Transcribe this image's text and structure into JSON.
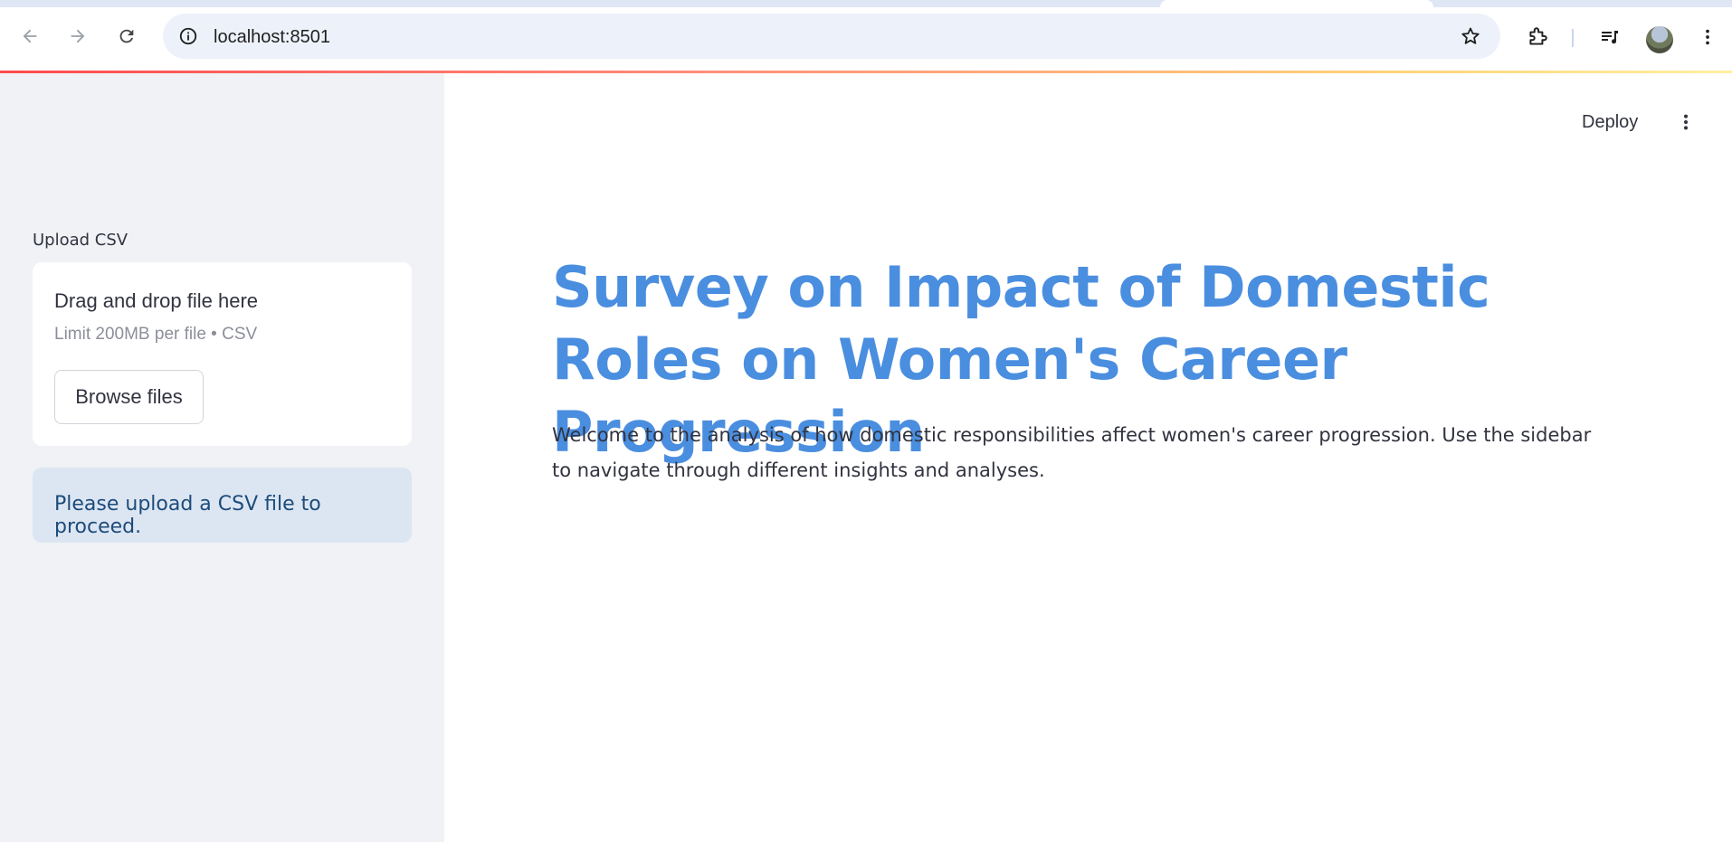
{
  "browser": {
    "url": "localhost:8501"
  },
  "sidebar": {
    "upload_label": "Upload CSV",
    "dropzone": {
      "title": "Drag and drop file here",
      "limit": "Limit 200MB per file • CSV",
      "browse_label": "Browse files"
    },
    "info_message": "Please upload a CSV file to proceed."
  },
  "header": {
    "deploy_label": "Deploy"
  },
  "main": {
    "title": "Survey on Impact of Domestic Roles on Women's Career Progression",
    "intro": "Welcome to the analysis of how domestic responsibilities affect women's career progression. Use the sidebar to navigate through different insights and analyses."
  },
  "colors": {
    "title": "#4a8ee0",
    "sidebar_bg": "#f0f2f6",
    "info_bg": "#dce6f3",
    "info_text": "#1d4b7a",
    "accent_line": "#ff4b4b"
  },
  "icons": [
    "back-icon",
    "forward-icon",
    "reload-icon",
    "site-info-icon",
    "bookmark-star-icon",
    "extensions-icon",
    "media-controls-icon",
    "profile-avatar",
    "browser-menu-icon",
    "app-menu-icon"
  ]
}
